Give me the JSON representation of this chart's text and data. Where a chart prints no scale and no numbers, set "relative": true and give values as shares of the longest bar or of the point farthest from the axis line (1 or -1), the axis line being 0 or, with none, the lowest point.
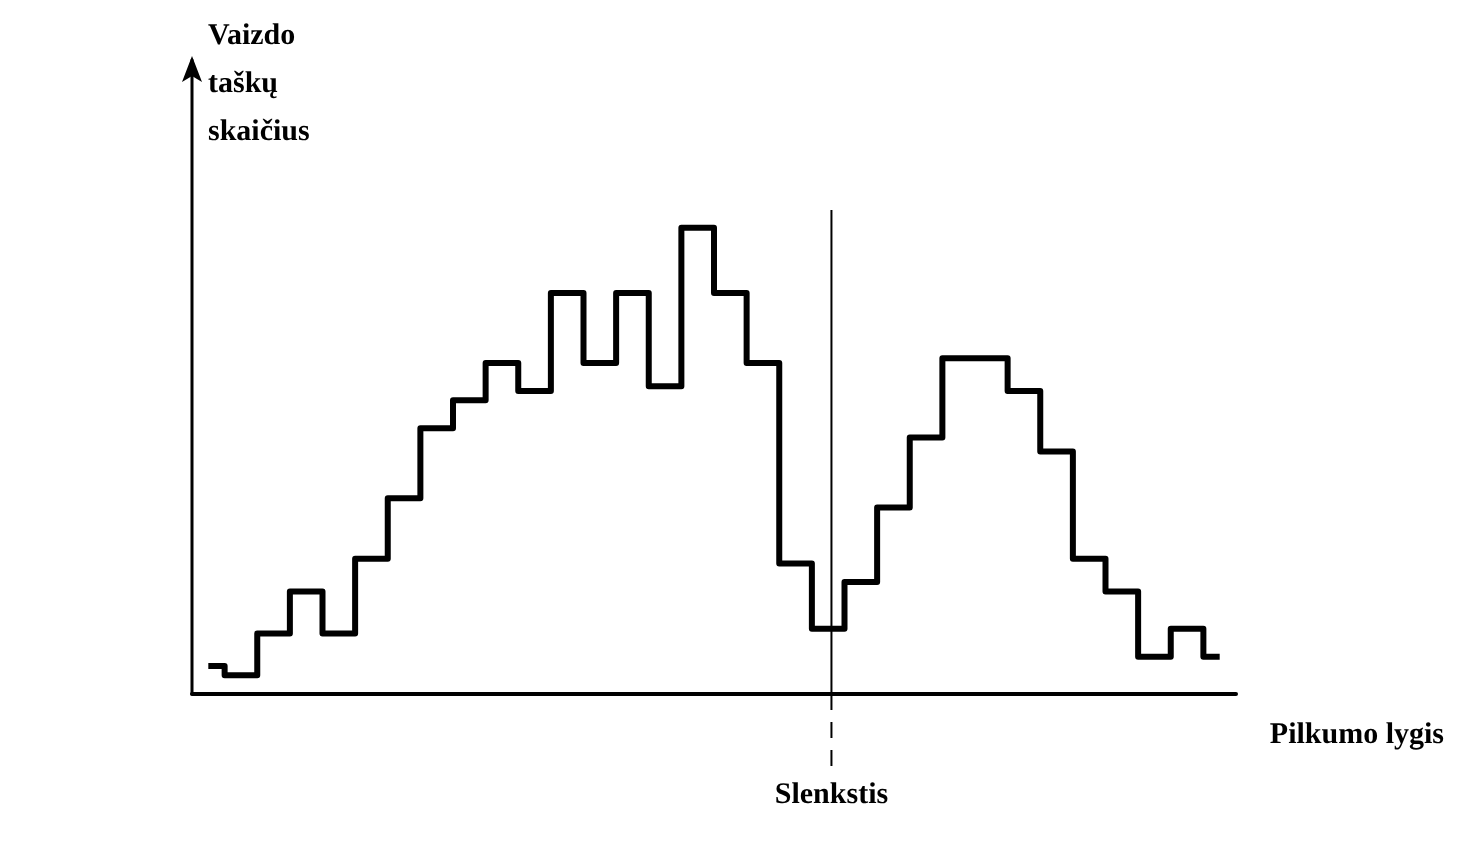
{
  "chart_data": {
    "type": "step",
    "relative": true,
    "xlabel": "Pilkumo lygis",
    "ylabel": "Vaizdo taškų skaičius",
    "color": "#000000",
    "categories": [
      null,
      null,
      null,
      null,
      null,
      null,
      null,
      null,
      null,
      null,
      null,
      null,
      null,
      null,
      null,
      null,
      null,
      null,
      null,
      null,
      null,
      null,
      null,
      null,
      null,
      null,
      null,
      null,
      null,
      null,
      null,
      null
    ],
    "values": [
      0.06,
      0.04,
      0.13,
      0.22,
      0.13,
      0.29,
      0.42,
      0.57,
      0.63,
      0.71,
      0.65,
      0.86,
      0.71,
      0.86,
      0.66,
      1,
      0.86,
      0.71,
      0.28,
      0.14,
      0.24,
      0.4,
      0.55,
      0.72,
      0.72,
      0.65,
      0.52,
      0.29,
      0.22,
      0.08,
      0.14,
      0.08
    ],
    "annotations": [
      "Slenkstis"
    ]
  }
}
